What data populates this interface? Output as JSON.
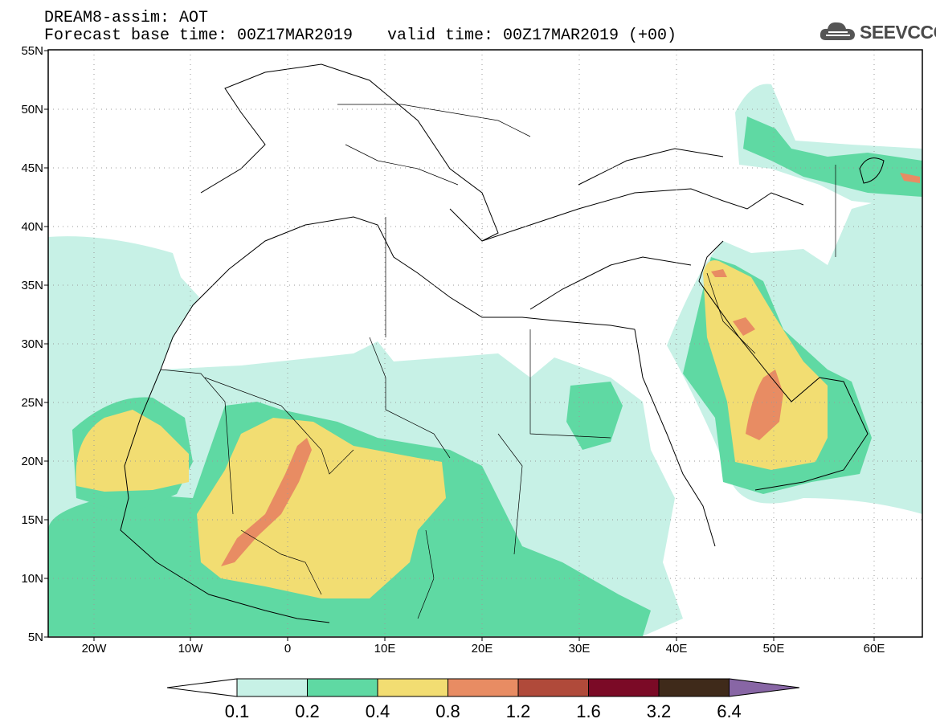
{
  "header": {
    "title": "DREAM8-assim: AOT",
    "base_time": "Forecast base time: 00Z17MAR2019",
    "valid_time": "valid time: 00Z17MAR2019 (+00)"
  },
  "brand": {
    "name": "SEEVCCC",
    "icon": "cloud-logo-icon"
  },
  "map": {
    "lat_labels": [
      "55N",
      "50N",
      "45N",
      "40N",
      "35N",
      "30N",
      "25N",
      "20N",
      "15N",
      "10N",
      "5N"
    ],
    "lon_labels": [
      "20W",
      "10W",
      "0",
      "10E",
      "20E",
      "30E",
      "40E",
      "50E",
      "60E"
    ],
    "grid": "dotted"
  },
  "colorbar": {
    "labels": [
      "0.1",
      "0.2",
      "0.4",
      "0.8",
      "1.2",
      "1.6",
      "3.2",
      "6.4"
    ],
    "colors": [
      "#ffffff",
      "#c7f1e6",
      "#5fd9a3",
      "#f2dd72",
      "#e88c63",
      "#b04a3a",
      "#7b0a26",
      "#3f2a1a",
      "#8866a5"
    ]
  }
}
